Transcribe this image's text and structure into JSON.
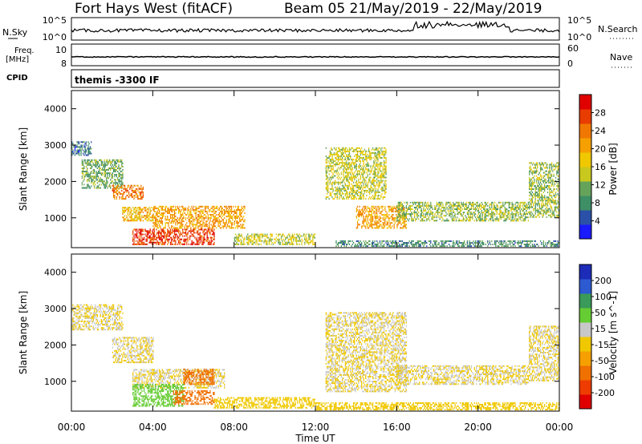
{
  "header": {
    "station": "Fort Hays West (fitACF)",
    "beam_date": "Beam 05 21/May/2019 - 22/May/2019"
  },
  "strips": {
    "nsky_label": "N.Sky",
    "nsky_top": "10^5",
    "nsky_bottom": "10^0",
    "nsearch_label": "N.Search",
    "nsearch_top": "10^5",
    "nsearch_bottom": "10^0",
    "freq_label": "Freq.",
    "freq_unit": "[MHz]",
    "freq_top": "10",
    "freq_bottom": "8",
    "nave_label": "Nave",
    "nave_top": "60",
    "nave_bottom": "0",
    "cpid_label": "CPID",
    "cpid_value": "themis -3300 IF"
  },
  "axes": {
    "ylabel": "Slant Range [km]",
    "xlabel": "Time UT",
    "yticks": [
      "1000",
      "2000",
      "3000",
      "4000"
    ],
    "xticks": [
      "00:00",
      "04:00",
      "08:00",
      "12:00",
      "16:00",
      "20:00",
      "00:00"
    ]
  },
  "colorbars": {
    "power": {
      "label": "Power [dB]",
      "ticks": [
        "4",
        "8",
        "12",
        "16",
        "20",
        "24",
        "28"
      ],
      "colors": [
        "#1a1aff",
        "#2a50a8",
        "#3e8e66",
        "#66a35a",
        "#c8c81e",
        "#f0c800",
        "#f5a000",
        "#f07800",
        "#e83c00",
        "#e00000"
      ]
    },
    "velocity": {
      "label": "Velocity [m s^-1]",
      "ticks": [
        "200",
        "100",
        "50",
        "15",
        "-15",
        "-50",
        "-100",
        "-200"
      ],
      "colors": [
        "#1c2cb8",
        "#2d5ad0",
        "#3a9a5a",
        "#66cc33",
        "#c8c8c8",
        "#f0c800",
        "#f5a000",
        "#f07000",
        "#ee3c00",
        "#e00000"
      ]
    }
  },
  "chart_data": [
    {
      "type": "heatmap",
      "title": "Power",
      "xlabel": "Time UT",
      "ylabel": "Slant Range [km]",
      "xlim": [
        0,
        24
      ],
      "ylim": [
        180,
        4500
      ],
      "colorbar_label": "Power [dB]",
      "colorbar_range": [
        0,
        30
      ],
      "regions": [
        {
          "t": [
            0.0,
            1.0
          ],
          "r": [
            2700,
            3100
          ],
          "v": 6
        },
        {
          "t": [
            0.5,
            2.5
          ],
          "r": [
            1800,
            2600
          ],
          "v": 10
        },
        {
          "t": [
            2.0,
            3.5
          ],
          "r": [
            1500,
            1900
          ],
          "v": 22
        },
        {
          "t": [
            2.5,
            4.0
          ],
          "r": [
            900,
            1300
          ],
          "v": 18
        },
        {
          "t": [
            3.0,
            7.0
          ],
          "r": [
            250,
            700
          ],
          "v": 26
        },
        {
          "t": [
            4.0,
            8.5
          ],
          "r": [
            700,
            1300
          ],
          "v": 20
        },
        {
          "t": [
            8.0,
            12.0
          ],
          "r": [
            250,
            550
          ],
          "v": 14
        },
        {
          "t": [
            12.5,
            15.5
          ],
          "r": [
            1500,
            2900
          ],
          "v": 14
        },
        {
          "t": [
            14.0,
            16.5
          ],
          "r": [
            700,
            1300
          ],
          "v": 20
        },
        {
          "t": [
            16.0,
            22.5
          ],
          "r": [
            900,
            1400
          ],
          "v": 12
        },
        {
          "t": [
            22.5,
            24.0
          ],
          "r": [
            1000,
            2500
          ],
          "v": 12
        },
        {
          "t": [
            13.0,
            24.0
          ],
          "r": [
            200,
            350
          ],
          "v": 8
        }
      ]
    },
    {
      "type": "heatmap",
      "title": "Velocity",
      "xlabel": "Time UT",
      "ylabel": "Slant Range [km]",
      "xlim": [
        0,
        24
      ],
      "ylim": [
        180,
        4500
      ],
      "colorbar_label": "Velocity [m s^-1]",
      "colorbar_range": [
        -250,
        250
      ],
      "regions": [
        {
          "t": [
            0.0,
            2.5
          ],
          "r": [
            2400,
            3100
          ],
          "v": 0
        },
        {
          "t": [
            2.0,
            4.0
          ],
          "r": [
            1500,
            2200
          ],
          "v": 0
        },
        {
          "t": [
            3.0,
            7.5
          ],
          "r": [
            800,
            1300
          ],
          "v": 0
        },
        {
          "t": [
            5.5,
            7.0
          ],
          "r": [
            900,
            1350
          ],
          "v": -120
        },
        {
          "t": [
            3.0,
            5.5
          ],
          "r": [
            300,
            900
          ],
          "v": 60
        },
        {
          "t": [
            5.0,
            7.0
          ],
          "r": [
            350,
            750
          ],
          "v": -120
        },
        {
          "t": [
            7.0,
            12.0
          ],
          "r": [
            250,
            550
          ],
          "v": -40
        },
        {
          "t": [
            12.5,
            16.5
          ],
          "r": [
            700,
            2900
          ],
          "v": 0
        },
        {
          "t": [
            16.0,
            22.5
          ],
          "r": [
            900,
            1400
          ],
          "v": 0
        },
        {
          "t": [
            22.5,
            24.0
          ],
          "r": [
            1000,
            2500
          ],
          "v": 0
        },
        {
          "t": [
            12.0,
            24.0
          ],
          "r": [
            200,
            400
          ],
          "v": -40
        }
      ]
    }
  ]
}
